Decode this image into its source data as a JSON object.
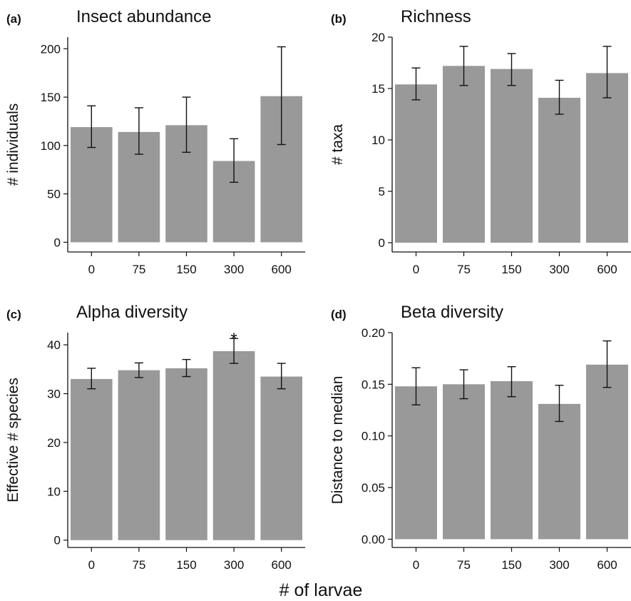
{
  "figure": {
    "shared_xlabel": "# of larvae"
  },
  "chart_data": [
    {
      "type": "bar",
      "panel_letter": "(a)",
      "title": "Insect abundance",
      "xlabel": "",
      "ylabel": "# individuals",
      "categories": [
        "0",
        "75",
        "150",
        "300",
        "600"
      ],
      "values": [
        119,
        114,
        121,
        84,
        151
      ],
      "error_low": [
        98,
        91,
        93,
        62,
        101
      ],
      "error_high": [
        141,
        139,
        150,
        107,
        202
      ],
      "ylim": [
        -10,
        212
      ],
      "yticks": [
        0,
        50,
        100,
        150,
        200
      ],
      "ytick_labels": [
        "0",
        "50",
        "100",
        "150",
        "200"
      ],
      "annotations": [],
      "grid": false,
      "bar_color": "#999999"
    },
    {
      "type": "bar",
      "panel_letter": "(b)",
      "title": "Richness",
      "xlabel": "",
      "ylabel": "# taxa",
      "categories": [
        "0",
        "75",
        "150",
        "300",
        "600"
      ],
      "values": [
        15.4,
        17.2,
        16.9,
        14.1,
        16.5
      ],
      "error_low": [
        13.9,
        15.3,
        15.3,
        12.5,
        14.1
      ],
      "error_high": [
        17.0,
        19.1,
        18.4,
        15.8,
        19.1
      ],
      "ylim": [
        -0.9,
        20
      ],
      "yticks": [
        0,
        5,
        10,
        15,
        20
      ],
      "ytick_labels": [
        "0",
        "5",
        "10",
        "15",
        "20"
      ],
      "annotations": [],
      "grid": false,
      "bar_color": "#999999"
    },
    {
      "type": "bar",
      "panel_letter": "(c)",
      "title": "Alpha diversity",
      "xlabel": "",
      "ylabel": "Effective # species",
      "categories": [
        "0",
        "75",
        "150",
        "300",
        "600"
      ],
      "values": [
        33.0,
        34.8,
        35.2,
        38.7,
        33.5
      ],
      "error_low": [
        31.0,
        33.3,
        33.5,
        36.2,
        31.0
      ],
      "error_high": [
        35.2,
        36.3,
        37.0,
        41.3,
        36.2
      ],
      "ylim": [
        -1.5,
        42.5
      ],
      "yticks": [
        0,
        10,
        20,
        30,
        40
      ],
      "ytick_labels": [
        "0",
        "10",
        "20",
        "30",
        "40"
      ],
      "annotations": [
        {
          "category": "300",
          "text": "*"
        }
      ],
      "grid": false,
      "bar_color": "#999999"
    },
    {
      "type": "bar",
      "panel_letter": "(d)",
      "title": "Beta diversity",
      "xlabel": "",
      "ylabel": "Distance to median",
      "categories": [
        "0",
        "75",
        "150",
        "300",
        "600"
      ],
      "values": [
        0.148,
        0.15,
        0.153,
        0.131,
        0.169
      ],
      "error_low": [
        0.13,
        0.136,
        0.138,
        0.114,
        0.147
      ],
      "error_high": [
        0.166,
        0.164,
        0.167,
        0.149,
        0.192
      ],
      "ylim": [
        -0.008,
        0.2
      ],
      "yticks": [
        0.0,
        0.05,
        0.1,
        0.15,
        0.2
      ],
      "ytick_labels": [
        "0.00",
        "0.05",
        "0.10",
        "0.15",
        "0.20"
      ],
      "annotations": [],
      "grid": false,
      "bar_color": "#999999"
    }
  ]
}
